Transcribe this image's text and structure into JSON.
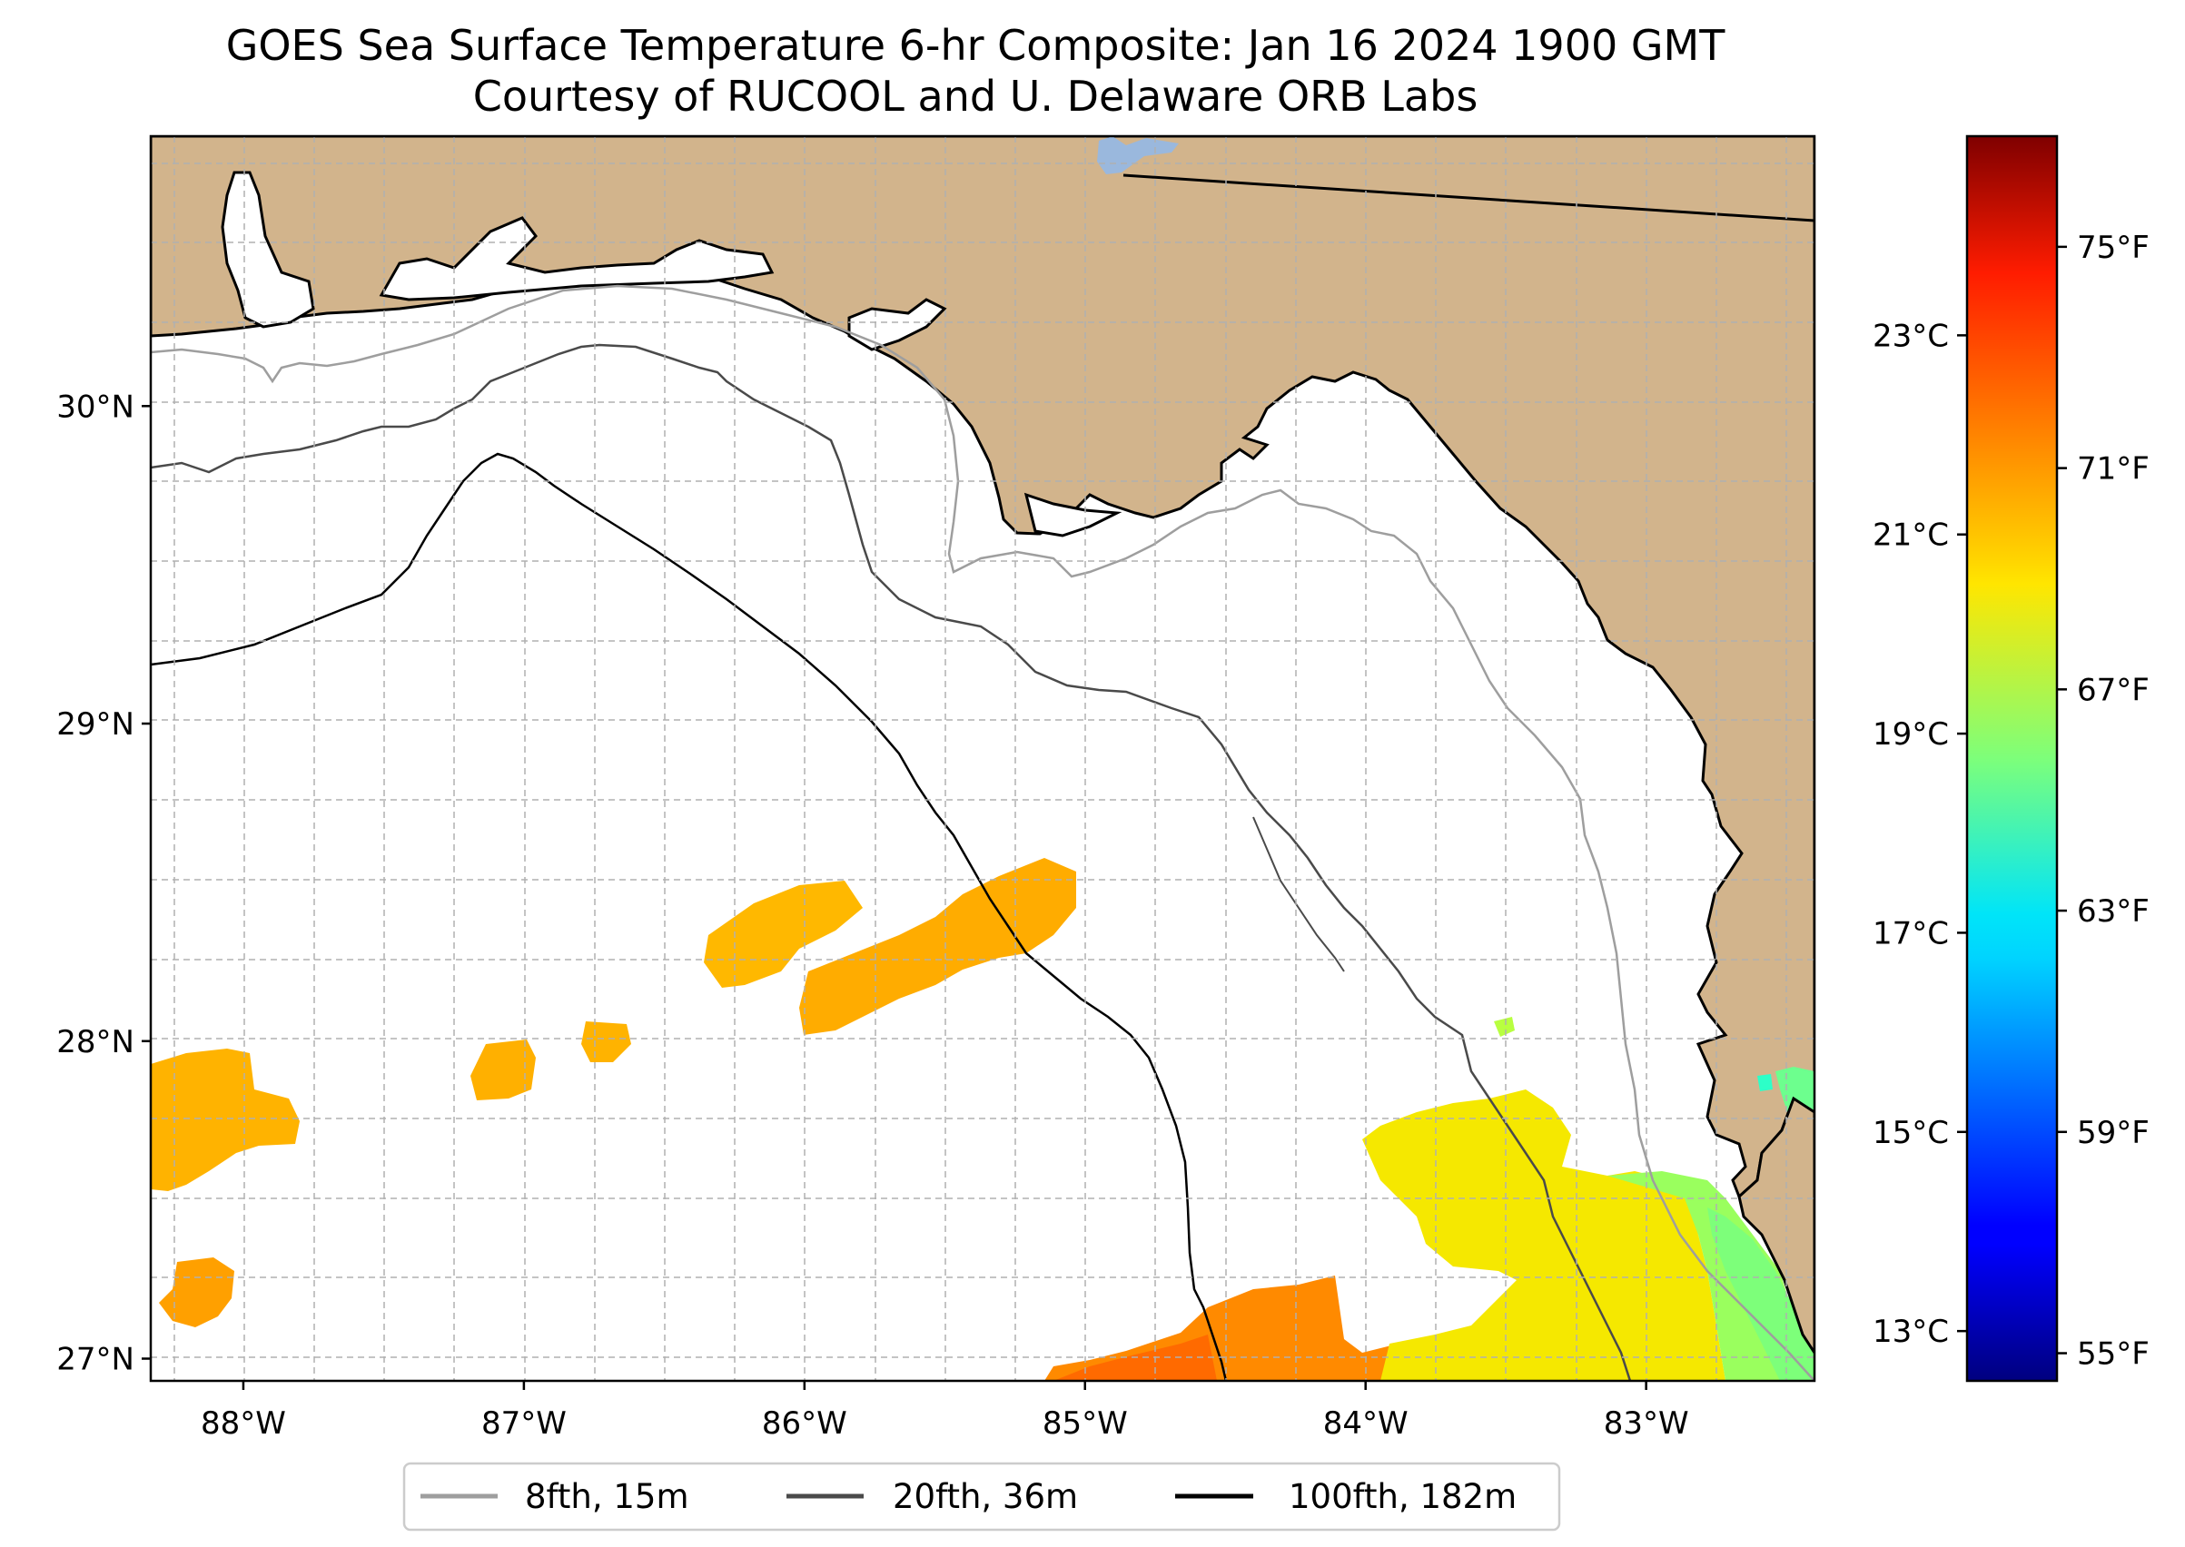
{
  "title": "GOES Sea Surface Temperature 6-hr Composite: Jan 16 2024 1900 GMT",
  "subtitle": "Courtesy of RUCOOL and U. Delaware ORB Labs",
  "map": {
    "lon_range": [
      -88.33,
      -82.4
    ],
    "lat_range": [
      26.93,
      30.85
    ],
    "lat_ticks": [
      {
        "value": 30,
        "label": "30°N"
      },
      {
        "value": 29,
        "label": "29°N"
      },
      {
        "value": 28,
        "label": "28°N"
      },
      {
        "value": 27,
        "label": "27°N"
      }
    ],
    "lon_ticks": [
      {
        "value": -88,
        "label": "88°W"
      },
      {
        "value": -87,
        "label": "87°W"
      },
      {
        "value": -86,
        "label": "86°W"
      },
      {
        "value": -85,
        "label": "85°W"
      },
      {
        "value": -84,
        "label": "84°W"
      },
      {
        "value": -83,
        "label": "83°W"
      }
    ],
    "gridlines": "dashed, every 0.25°",
    "colors": {
      "land": "#d2b48c",
      "ocean_no_data": "#ffffff",
      "coastline": "#000000",
      "lake": "#9ab8dd",
      "contour_8fth": "#9e9e9e",
      "contour_20fth": "#4a4a4a",
      "contour_100fth": "#000000"
    }
  },
  "legend": {
    "position": "bottom-center",
    "items": [
      {
        "label": "8fth, 15m",
        "color": "#9e9e9e"
      },
      {
        "label": "20fth, 36m",
        "color": "#4a4a4a"
      },
      {
        "label": "100fth, 182m",
        "color": "#000000"
      }
    ]
  },
  "colorbar": {
    "colormap": "jet",
    "range_f": [
      54.5,
      77.0
    ],
    "celsius_ticks": [
      {
        "value": 23,
        "label": "23°C"
      },
      {
        "value": 21,
        "label": "21°C"
      },
      {
        "value": 19,
        "label": "19°C"
      },
      {
        "value": 17,
        "label": "17°C"
      },
      {
        "value": 15,
        "label": "15°C"
      },
      {
        "value": 13,
        "label": "13°C"
      }
    ],
    "fahrenheit_ticks": [
      {
        "value": 75,
        "label": "75°F"
      },
      {
        "value": 71,
        "label": "71°F"
      },
      {
        "value": 67,
        "label": "67°F"
      },
      {
        "value": 63,
        "label": "63°F"
      },
      {
        "value": 59,
        "label": "59°F"
      },
      {
        "value": 55,
        "label": "55°F"
      }
    ]
  }
}
